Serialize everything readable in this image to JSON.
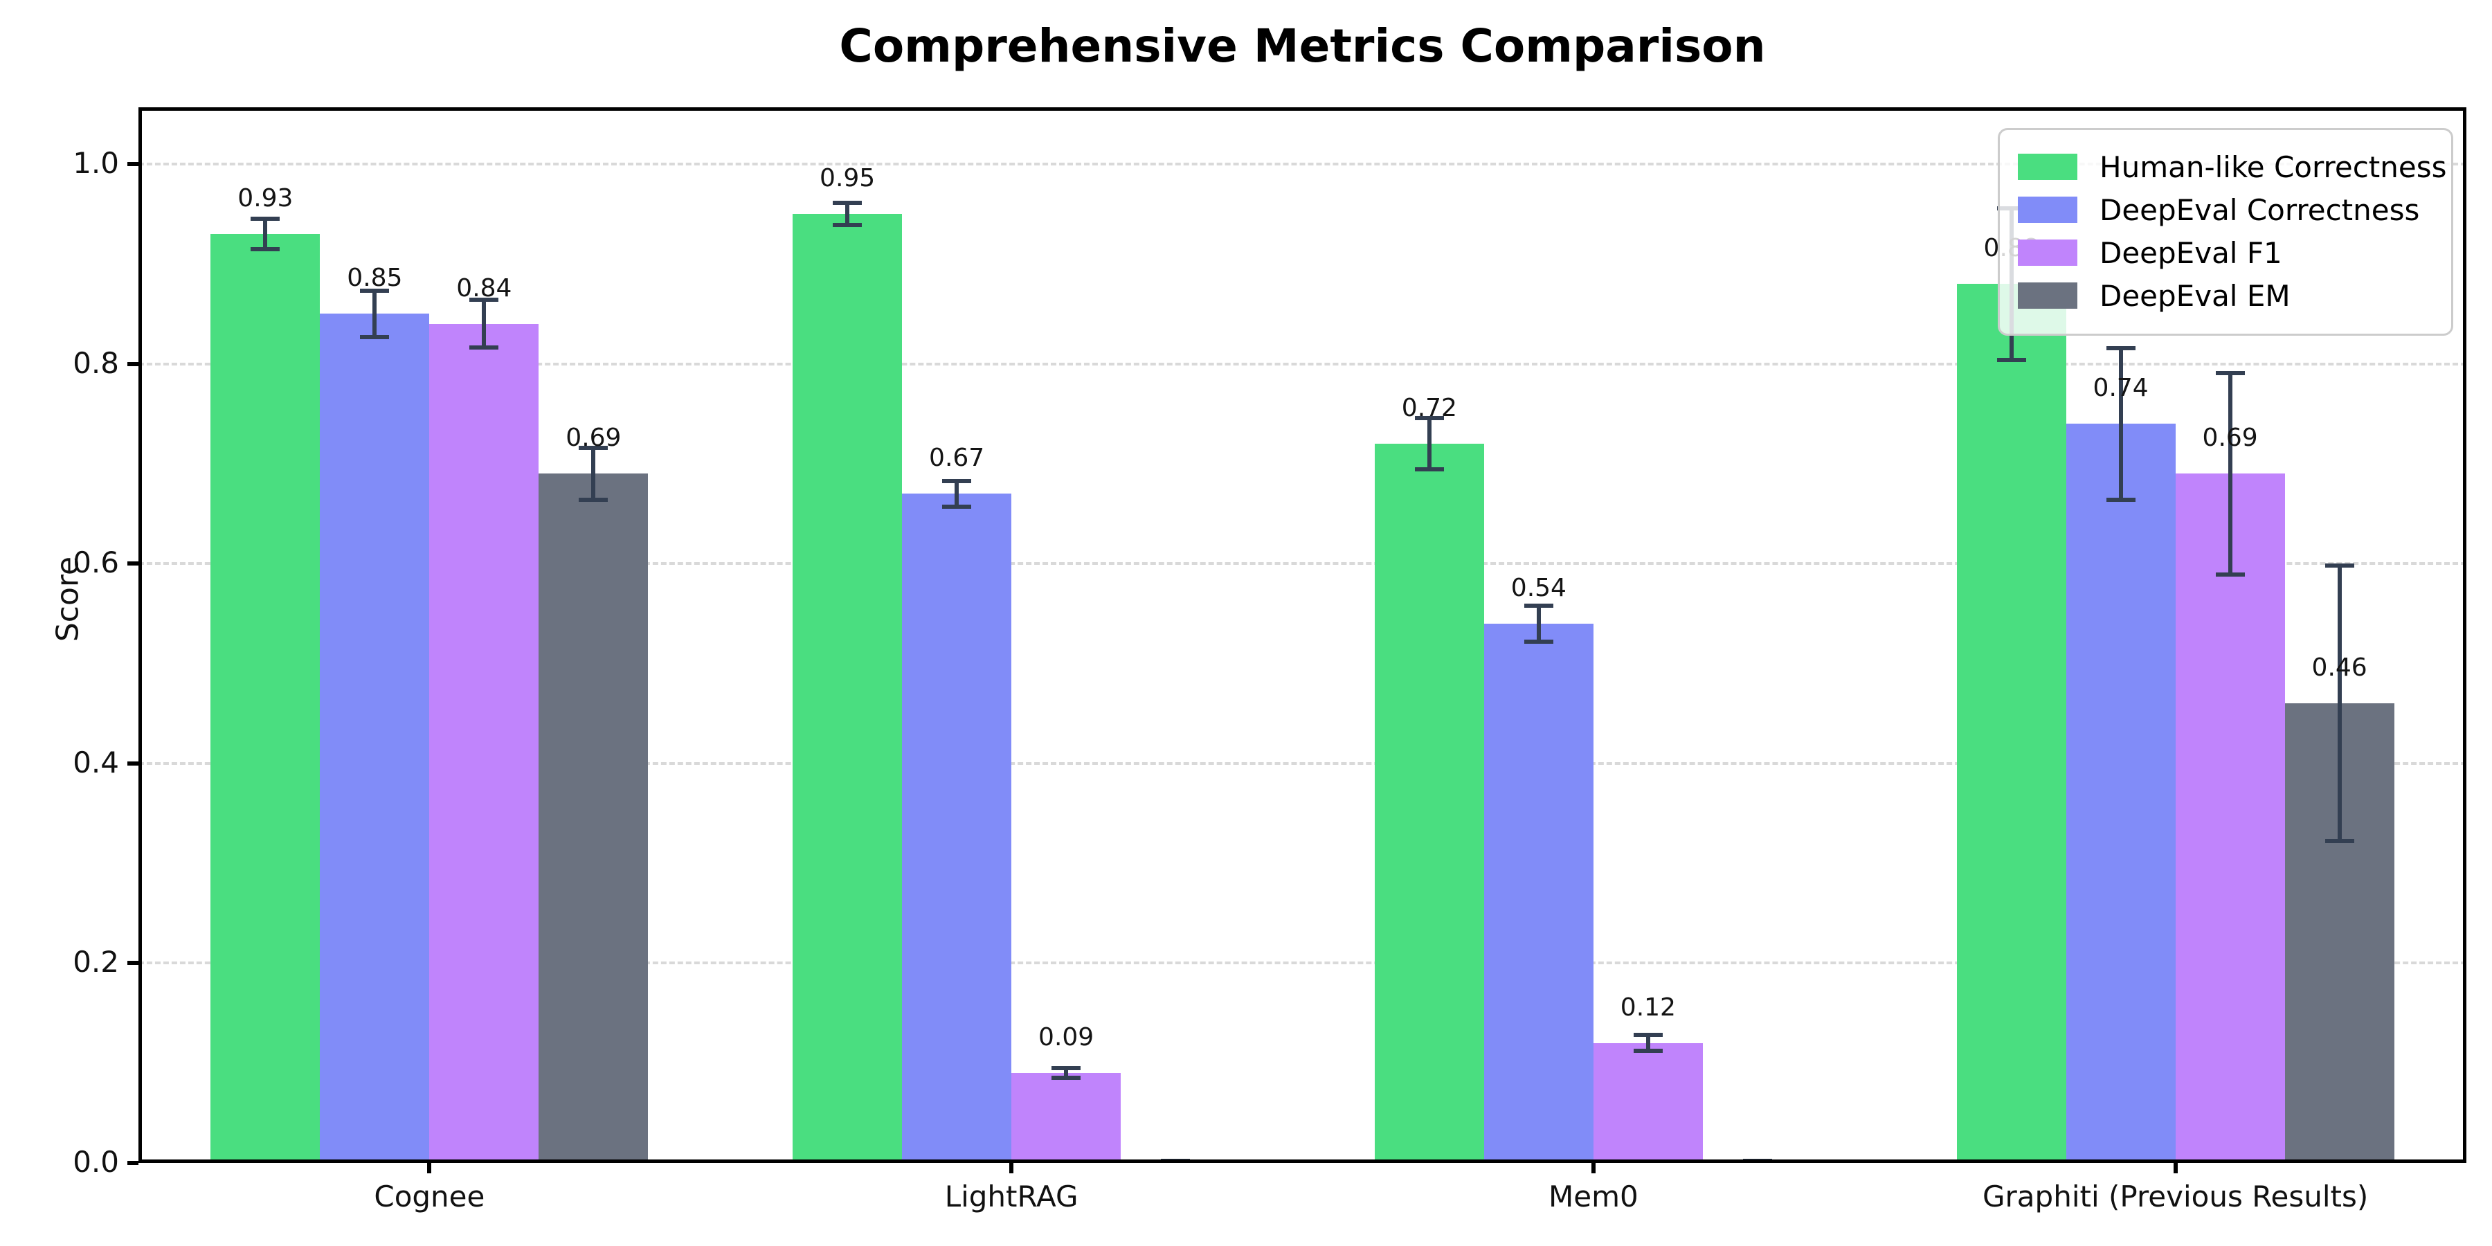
{
  "title": "Comprehensive Metrics Comparison",
  "chart_data": {
    "type": "bar",
    "title": "Comprehensive Metrics Comparison",
    "xlabel": "",
    "ylabel": "Score",
    "categories": [
      "Cognee",
      "LightRAG",
      "Mem0",
      "Graphiti (Previous Results)"
    ],
    "series": [
      {
        "name": "Human-like Correctness",
        "color": "#4ade80",
        "values": [
          0.93,
          0.95,
          0.72,
          0.88
        ],
        "errors": [
          0.017,
          0.013,
          0.028,
          0.078
        ],
        "labels": [
          "0.93",
          "0.95",
          "0.72",
          "0.88"
        ]
      },
      {
        "name": "DeepEval Correctness",
        "color": "#818cf8",
        "values": [
          0.85,
          0.67,
          0.54,
          0.74
        ],
        "errors": [
          0.025,
          0.015,
          0.02,
          0.078
        ],
        "labels": [
          "0.85",
          "0.67",
          "0.54",
          "0.74"
        ]
      },
      {
        "name": "DeepEval F1",
        "color": "#c084fc",
        "values": [
          0.84,
          0.09,
          0.12,
          0.69
        ],
        "errors": [
          0.026,
          0.007,
          0.01,
          0.103
        ],
        "labels": [
          "0.84",
          "0.09",
          "0.12",
          "0.69"
        ]
      },
      {
        "name": "DeepEval EM",
        "color": "#6b7280",
        "values": [
          0.69,
          0.0,
          0.0,
          0.46
        ],
        "errors": [
          0.028,
          0.004,
          0.004,
          0.14
        ],
        "labels": [
          "0.69",
          "",
          "",
          "0.46"
        ]
      }
    ],
    "yticks": [
      0.0,
      0.2,
      0.4,
      0.6,
      0.8,
      1.0
    ],
    "ytick_labels": [
      "0.0",
      "0.2",
      "0.4",
      "0.6",
      "0.8",
      "1.0"
    ],
    "ylim": [
      0,
      1.057
    ],
    "grid": "horizontal-dashed",
    "legend_position": "upper right",
    "error_bar_color": "#333f52",
    "grid_color": "#d9d9d9"
  }
}
